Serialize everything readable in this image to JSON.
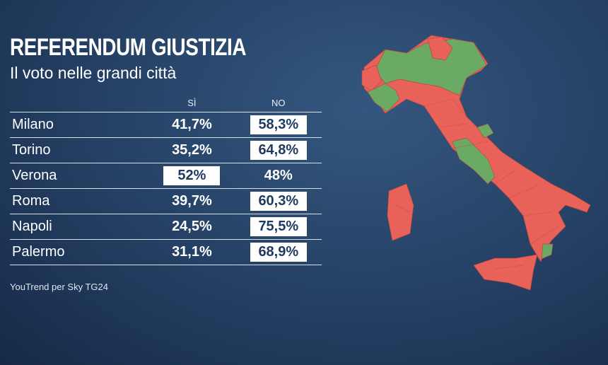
{
  "header": {
    "title": "REFERENDUM GIUSTIZIA",
    "subtitle": "Il voto nelle grandi città"
  },
  "table": {
    "columns": [
      "SÌ",
      "NO"
    ],
    "rows": [
      [
        "Milano",
        "41,7%",
        "58,3%"
      ],
      [
        "Torino",
        "35,2%",
        "64,8%"
      ],
      [
        "Verona",
        "52%",
        "48%"
      ],
      [
        "Roma",
        "39,7%",
        "60,3%"
      ],
      [
        "Napoli",
        "24,5%",
        "75,5%"
      ],
      [
        "Palermo",
        "31,1%",
        "68,9%"
      ]
    ]
  },
  "source": "YouTrend per Sky TG24"
}
